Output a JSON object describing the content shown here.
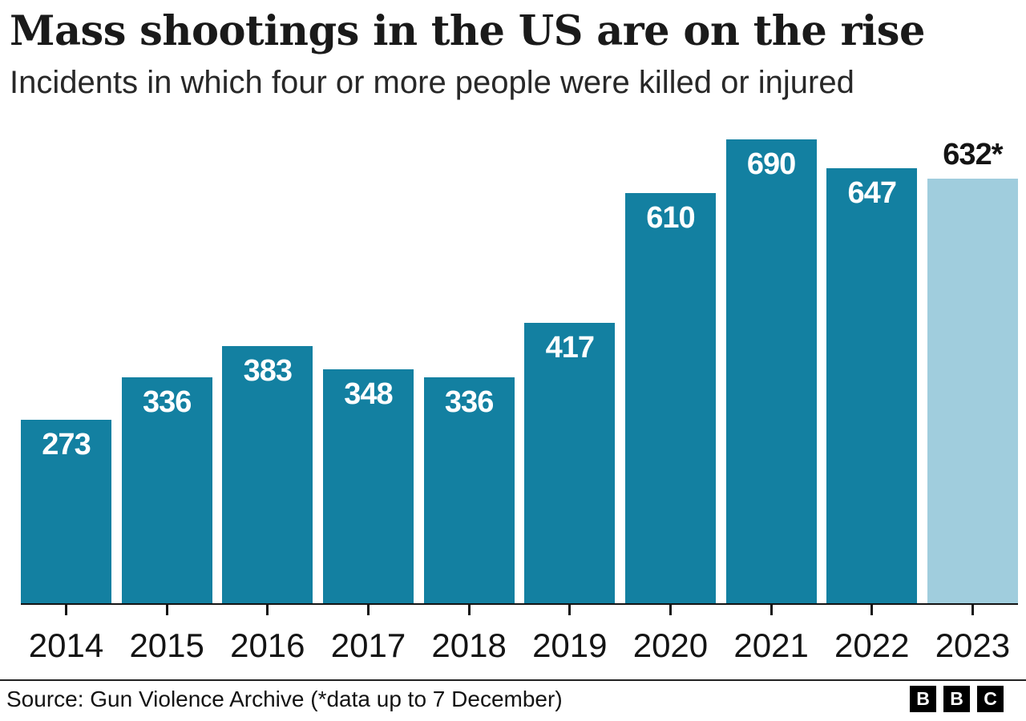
{
  "header": {
    "title": "Mass shootings in the US are on the rise",
    "subtitle": "Incidents in which four or more people were killed or injured"
  },
  "chart_data": {
    "type": "bar",
    "title": "Mass shootings in the US are on the rise",
    "subtitle": "Incidents in which four or more people were killed or injured",
    "categories": [
      "2014",
      "2015",
      "2016",
      "2017",
      "2018",
      "2019",
      "2020",
      "2021",
      "2022",
      "2023"
    ],
    "values": [
      273,
      336,
      383,
      348,
      336,
      417,
      610,
      690,
      647,
      632
    ],
    "bar_labels": [
      "273",
      "336",
      "383",
      "348",
      "336",
      "417",
      "610",
      "690",
      "647",
      "632*"
    ],
    "estimated_index": 9,
    "estimated_note": "*data up to 7 December",
    "xlabel": "",
    "ylabel": "",
    "ylim": [
      0,
      690
    ],
    "grid": false,
    "legend": "none",
    "colors": {
      "bar": "#1380A1",
      "bar_estimated": "#A0CDDD",
      "label_inside": "#ffffff",
      "label_outside": "#141414",
      "axis": "#141414"
    }
  },
  "footer": {
    "source": "Source: Gun Violence Archive (*data up to 7 December)",
    "logo_letters": [
      "B",
      "B",
      "C"
    ]
  }
}
